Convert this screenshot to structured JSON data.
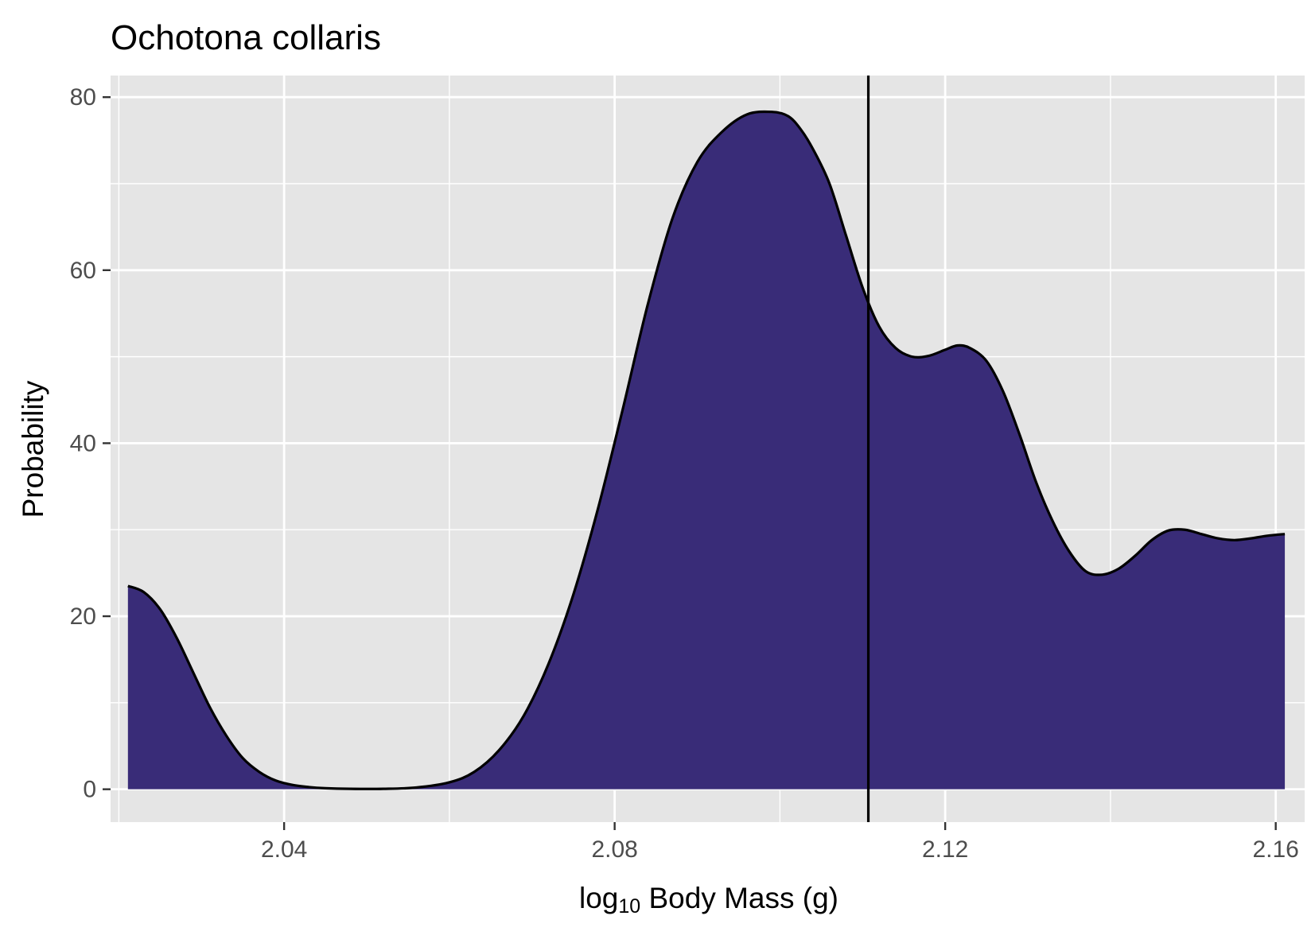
{
  "chart_data": {
    "type": "area",
    "title": "Ochotona collaris",
    "xlabel_base": "log",
    "xlabel_sub": "10",
    "xlabel_rest": " Body Mass (g)",
    "ylabel": "Probability",
    "xlim": [
      2.019,
      2.1635
    ],
    "ylim": [
      -3.8,
      82.5
    ],
    "x_ticks": [
      2.04,
      2.08,
      2.12,
      2.16
    ],
    "x_tick_labels": [
      "2.04",
      "2.08",
      "2.12",
      "2.16"
    ],
    "y_ticks": [
      0,
      20,
      40,
      60,
      80
    ],
    "y_tick_labels": [
      "0",
      "20",
      "40",
      "60",
      "80"
    ],
    "grid": true,
    "vline_x": 2.1107,
    "colors": {
      "fill": "#392C78",
      "line": "#000000",
      "panel": "#E5E5E5",
      "grid": "#FFFFFF"
    },
    "series": [
      {
        "x": [
          2.0211,
          2.023,
          2.025,
          2.027,
          2.029,
          2.031,
          2.033,
          2.035,
          2.037,
          2.039,
          2.041,
          2.043,
          2.045,
          2.048,
          2.052,
          2.056,
          2.06,
          2.063,
          2.066,
          2.069,
          2.072,
          2.075,
          2.078,
          2.081,
          2.084,
          2.087,
          2.09,
          2.093,
          2.096,
          2.099,
          2.101,
          2.1025,
          2.104,
          2.106,
          2.108,
          2.11,
          2.112,
          2.114,
          2.116,
          2.118,
          2.12,
          2.1215,
          2.123,
          2.125,
          2.127,
          2.129,
          2.131,
          2.133,
          2.135,
          2.137,
          2.139,
          2.141,
          2.143,
          2.145,
          2.147,
          2.149,
          2.151,
          2.153,
          2.155,
          2.157,
          2.159,
          2.1611
        ],
        "y": [
          23.5,
          22.8,
          20.8,
          17.5,
          13.5,
          9.5,
          6.2,
          3.6,
          2.0,
          1.0,
          0.5,
          0.25,
          0.12,
          0.05,
          0.05,
          0.2,
          0.8,
          2.0,
          4.5,
          8.5,
          14.5,
          22.5,
          32.5,
          44.0,
          56.0,
          66.0,
          72.5,
          76.0,
          78.0,
          78.3,
          77.8,
          76.3,
          74.0,
          70.0,
          64.0,
          58.0,
          53.5,
          51.0,
          50.0,
          50.1,
          50.8,
          51.3,
          51.0,
          49.5,
          46.0,
          41.0,
          35.5,
          31.0,
          27.5,
          25.2,
          24.8,
          25.5,
          27.0,
          28.8,
          29.9,
          30.0,
          29.5,
          29.0,
          28.8,
          29.0,
          29.3,
          29.5
        ]
      }
    ]
  }
}
